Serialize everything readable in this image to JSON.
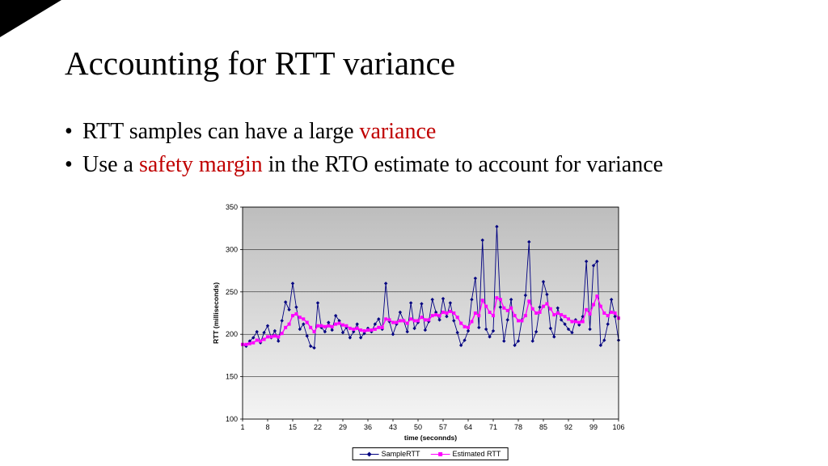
{
  "slide": {
    "title": "Accounting for RTT variance",
    "bullet_char": "•",
    "bullets": [
      {
        "segments": [
          {
            "text": "RTT samples can have a large ",
            "emphasis": false
          },
          {
            "text": "variance",
            "emphasis": true
          }
        ]
      },
      {
        "segments": [
          {
            "text": "Use a ",
            "emphasis": false
          },
          {
            "text": "safety margin",
            "emphasis": true
          },
          {
            "text": " in the RTO estimate to account for variance",
            "emphasis": false
          }
        ]
      }
    ]
  },
  "colors": {
    "emphasis_red": "#c00000",
    "sample_rtt": "#000080",
    "estimated_rtt": "#ff00ff",
    "plot_gradient_top": "#bdbdbd",
    "plot_gradient_bottom": "#f4f4f4",
    "grid_line": "#000000"
  },
  "chart_data": {
    "type": "line",
    "title": "",
    "xlabel": "time (seconnds)",
    "ylabel": "RTT (milliseconds)",
    "ylim": [
      100,
      350
    ],
    "y_ticks": [
      100,
      150,
      200,
      250,
      300,
      350
    ],
    "x_range": [
      1,
      106
    ],
    "x_tick_labels": [
      1,
      8,
      15,
      22,
      29,
      36,
      43,
      50,
      57,
      64,
      71,
      78,
      85,
      92,
      99,
      106
    ],
    "grid": true,
    "legend_position": "bottom",
    "series": [
      {
        "name": "SampleRTT",
        "marker": "diamond",
        "color": "#000080",
        "values": [
          188,
          186,
          192,
          196,
          203,
          190,
          202,
          210,
          196,
          204,
          192,
          216,
          238,
          229,
          260,
          232,
          206,
          212,
          198,
          186,
          184,
          237,
          208,
          203,
          214,
          205,
          222,
          216,
          202,
          208,
          196,
          203,
          212,
          196,
          201,
          207,
          203,
          212,
          218,
          206,
          260,
          215,
          200,
          212,
          226,
          216,
          203,
          237,
          207,
          214,
          236,
          205,
          215,
          241,
          226,
          217,
          242,
          221,
          237,
          216,
          202,
          187,
          193,
          204,
          241,
          266,
          208,
          311,
          206,
          197,
          204,
          327,
          232,
          192,
          217,
          241,
          187,
          192,
          217,
          246,
          309,
          192,
          203,
          232,
          262,
          247,
          207,
          197,
          231,
          217,
          212,
          206,
          202,
          217,
          211,
          221,
          286,
          206,
          281,
          286,
          187,
          193,
          212,
          241,
          221,
          193
        ]
      },
      {
        "name": "Estimated RTT",
        "marker": "square",
        "color": "#ff00ff",
        "values": [
          188,
          188,
          189,
          190,
          193,
          192,
          194,
          197,
          197,
          198,
          197,
          201,
          208,
          212,
          222,
          224,
          220,
          218,
          214,
          208,
          203,
          210,
          210,
          209,
          210,
          209,
          212,
          213,
          211,
          210,
          207,
          206,
          207,
          205,
          204,
          205,
          205,
          206,
          208,
          208,
          218,
          217,
          214,
          214,
          216,
          216,
          213,
          218,
          216,
          216,
          220,
          217,
          217,
          222,
          223,
          222,
          226,
          225,
          227,
          225,
          220,
          213,
          209,
          208,
          215,
          225,
          222,
          240,
          233,
          226,
          222,
          243,
          241,
          231,
          228,
          231,
          222,
          216,
          216,
          222,
          239,
          230,
          225,
          226,
          233,
          236,
          230,
          223,
          225,
          223,
          221,
          218,
          215,
          215,
          214,
          215,
          229,
          224,
          235,
          245,
          233,
          225,
          222,
          226,
          225,
          219
        ]
      }
    ]
  }
}
